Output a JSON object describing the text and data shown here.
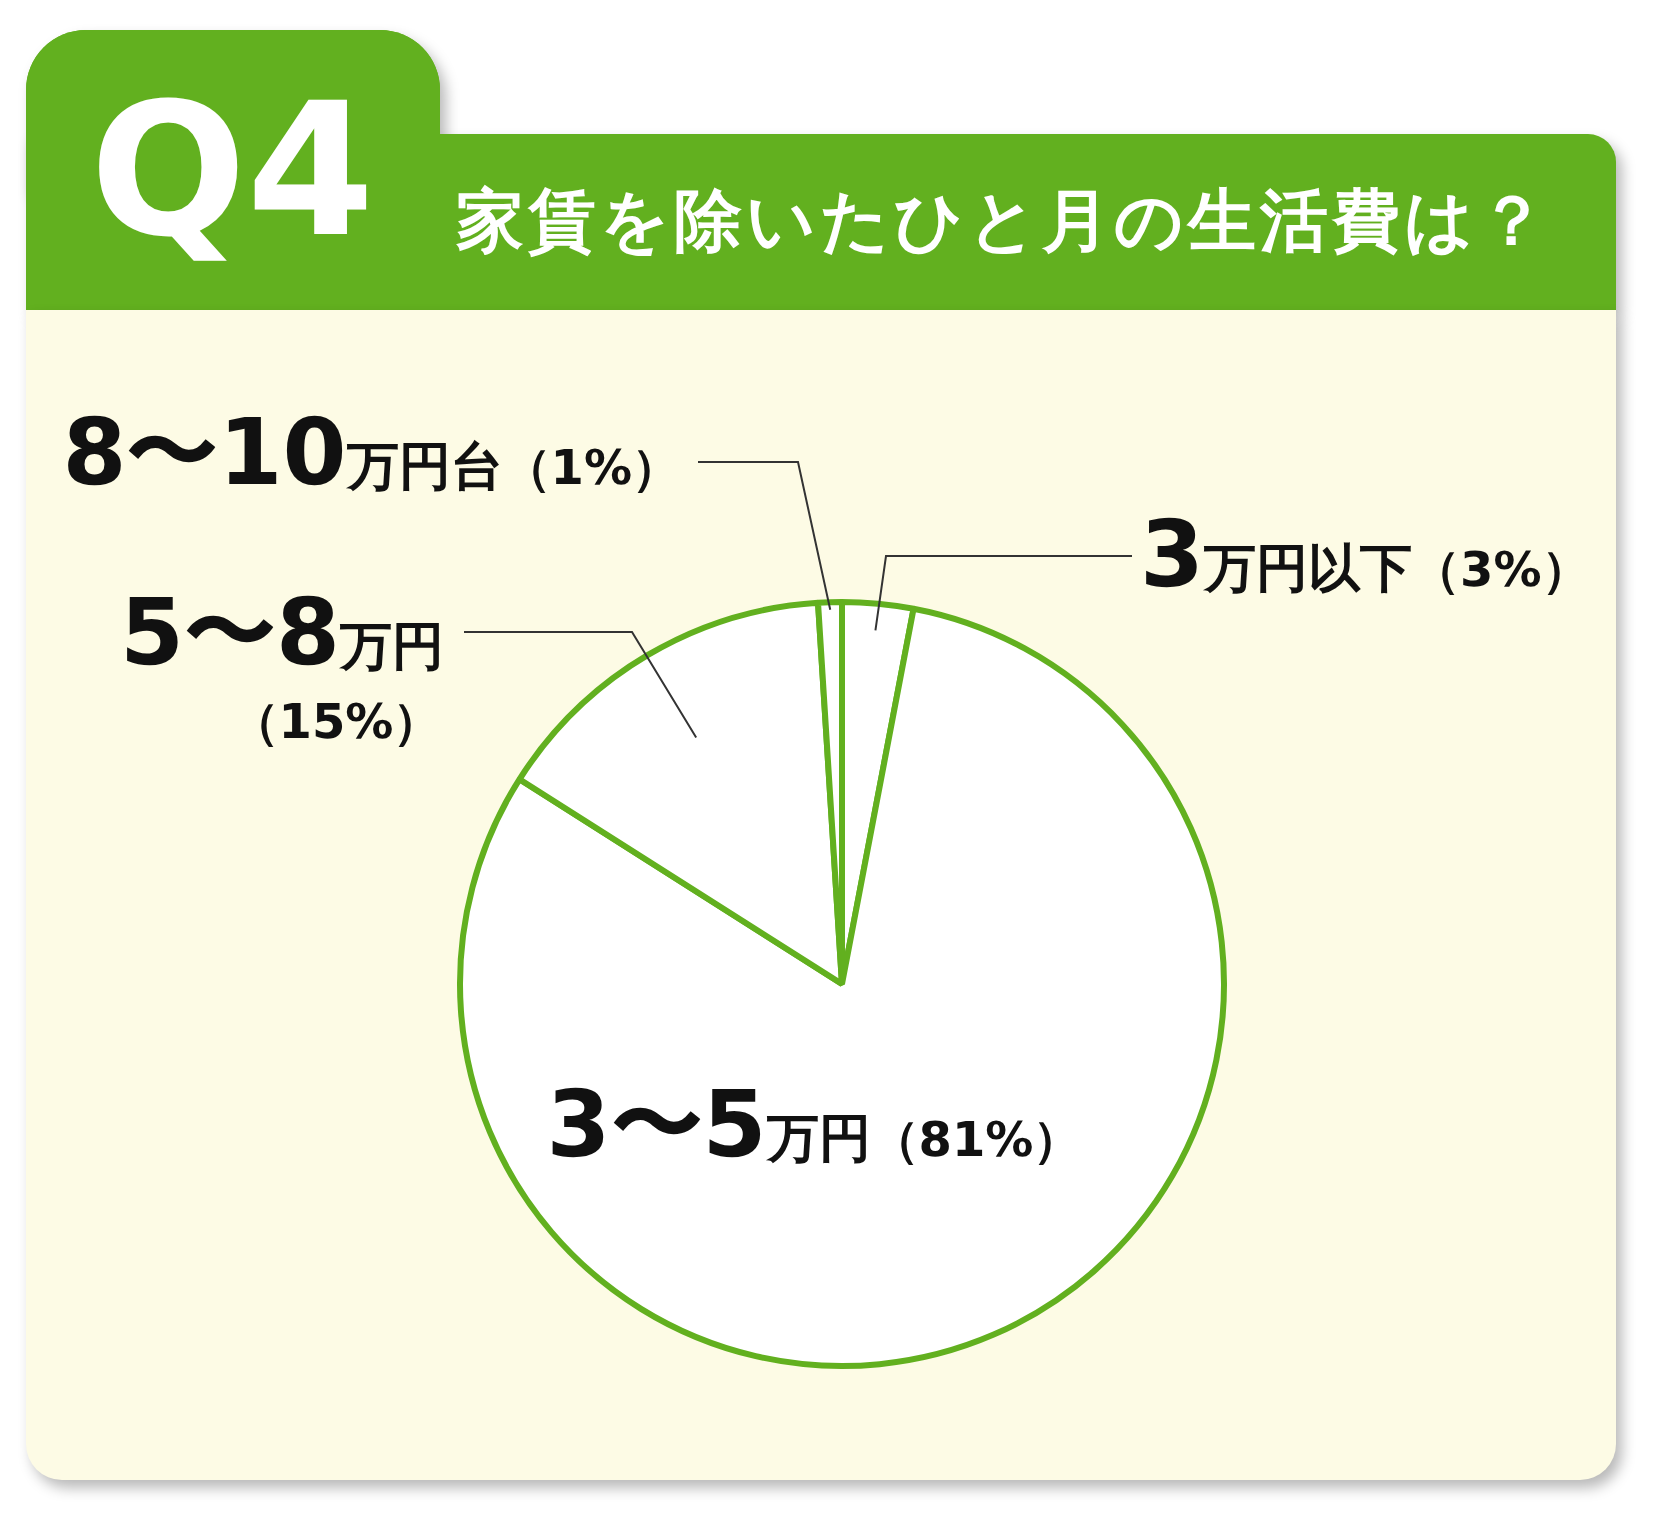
{
  "chart_data": {
    "type": "pie",
    "title": "家賃を除いたひと月の生活費は？",
    "annotations": [
      "Q4"
    ],
    "categories": [
      "3万円以下",
      "3〜5万円",
      "5〜8万円",
      "8〜10万円台"
    ],
    "values": [
      3,
      81,
      15,
      1
    ],
    "colors": [
      "#ffffff",
      "#ffffff",
      "#ffffff",
      "#ffffff"
    ],
    "value_labels": [
      "（3%）",
      "（81%）",
      "（15%）",
      "（1%）"
    ]
  }
}
